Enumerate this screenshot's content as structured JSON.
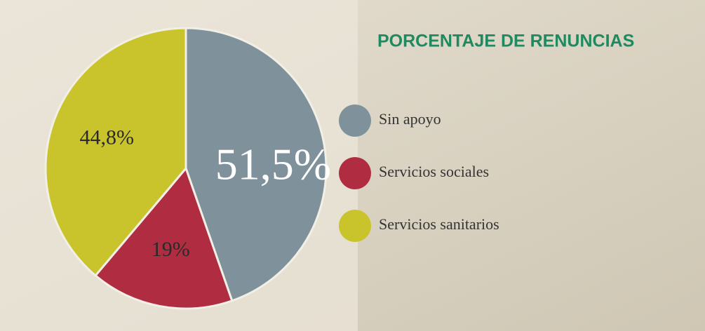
{
  "chart_data": {
    "type": "pie",
    "title": "PORCENTAJE DE RENUNCIAS",
    "categories": [
      "Sin apoyo",
      "Servicios sociales",
      "Servicios sanitarios"
    ],
    "values": [
      51.5,
      19,
      44.8
    ],
    "value_labels": [
      "51,5%",
      "19%",
      "44,8%"
    ],
    "colors": [
      "#7f929b",
      "#b02c41",
      "#c9c42b"
    ]
  }
}
